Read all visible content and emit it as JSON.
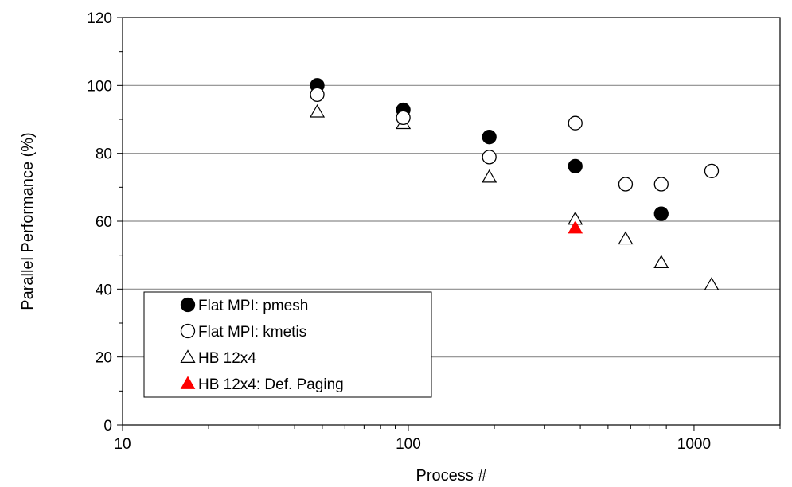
{
  "chart_data": {
    "type": "scatter",
    "xlabel": "Process #",
    "ylabel": "Parallel Performance (%)",
    "xscale": "log",
    "xlim": [
      10,
      2000
    ],
    "ylim": [
      0,
      120
    ],
    "x_ticks": [
      10,
      100,
      1000
    ],
    "x_tick_labels": [
      "10",
      "100",
      "1000"
    ],
    "y_ticks": [
      0,
      20,
      40,
      60,
      80,
      100,
      120
    ],
    "y_tick_labels": [
      "0",
      "20",
      "40",
      "60",
      "80",
      "100",
      "120"
    ],
    "grid": "horizontal",
    "legend_position": "bottom-left",
    "series": [
      {
        "name": "Flat MPI: pmesh",
        "marker": "filled-circle",
        "color": "#000000",
        "points": [
          {
            "x": 48,
            "y": 100.0
          },
          {
            "x": 96,
            "y": 92.8
          },
          {
            "x": 192,
            "y": 84.8
          },
          {
            "x": 384,
            "y": 76.2
          },
          {
            "x": 768,
            "y": 62.2
          }
        ]
      },
      {
        "name": "Flat MPI: kmetis",
        "marker": "open-circle",
        "color": "#000000",
        "points": [
          {
            "x": 48,
            "y": 97.3
          },
          {
            "x": 96,
            "y": 90.5
          },
          {
            "x": 192,
            "y": 78.9
          },
          {
            "x": 384,
            "y": 88.9
          },
          {
            "x": 576,
            "y": 70.9
          },
          {
            "x": 768,
            "y": 70.9
          },
          {
            "x": 1152,
            "y": 74.8
          }
        ]
      },
      {
        "name": "HB 12x4",
        "marker": "open-triangle",
        "color": "#000000",
        "points": [
          {
            "x": 48,
            "y": 92.2
          },
          {
            "x": 96,
            "y": 88.8
          },
          {
            "x": 192,
            "y": 73.0
          },
          {
            "x": 384,
            "y": 60.6
          },
          {
            "x": 576,
            "y": 54.8
          },
          {
            "x": 768,
            "y": 47.8
          },
          {
            "x": 1152,
            "y": 41.3
          }
        ]
      },
      {
        "name": "HB 12x4: Def. Paging",
        "marker": "filled-triangle",
        "color": "#ff0000",
        "points": [
          {
            "x": 384,
            "y": 58.0
          }
        ]
      }
    ]
  }
}
